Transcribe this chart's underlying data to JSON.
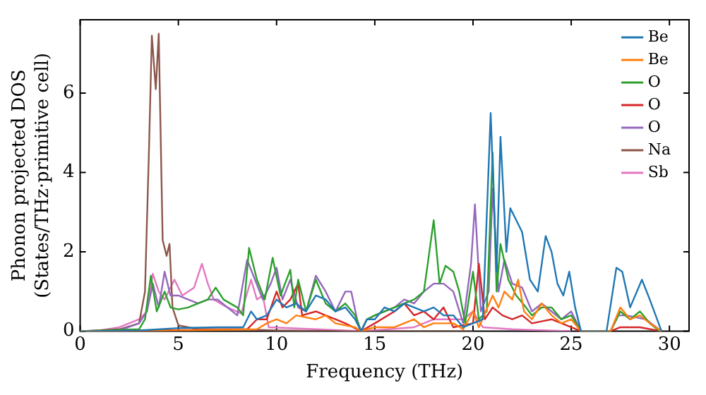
{
  "chart_data": {
    "type": "line",
    "xlabel": "Frequency (THz)",
    "ylabel": "Phonon projected DOS\n(States/THz·primitive cell)",
    "xlim": [
      0,
      31
    ],
    "ylim": [
      0,
      7.85
    ],
    "xticks": [
      0,
      5,
      10,
      15,
      20,
      25,
      30
    ],
    "yticks": [
      0,
      2,
      4,
      6
    ],
    "legend": "top right",
    "marker": "none",
    "line_style": "solid",
    "series": [
      {
        "name": "Be",
        "color": "#1f77b4",
        "x": [
          0,
          3,
          5,
          7,
          8.3,
          8.7,
          9,
          9.5,
          10,
          10.5,
          11,
          11.5,
          12,
          12.5,
          13,
          13.5,
          14,
          14.3,
          14.6,
          15,
          15.5,
          16,
          16.5,
          17,
          17.5,
          18,
          18.5,
          19,
          19.5,
          20,
          20.5,
          20.9,
          21.2,
          21.4,
          21.7,
          21.9,
          22.2,
          22.5,
          22.9,
          23.3,
          23.7,
          24,
          24.3,
          24.6,
          24.9,
          25.2,
          25.5,
          26.8,
          27.3,
          27.6,
          28,
          28.6,
          29,
          29.6
        ],
        "values": [
          0,
          0.02,
          0.08,
          0.1,
          0.1,
          0.5,
          0.3,
          0.4,
          0.8,
          0.6,
          0.7,
          0.5,
          0.9,
          0.8,
          0.5,
          0.6,
          0.3,
          0,
          0.3,
          0.3,
          0.6,
          0.5,
          0.7,
          0.6,
          0.5,
          0.6,
          0.4,
          0.4,
          0.1,
          0.2,
          0.3,
          5.5,
          1.5,
          4.9,
          2,
          3.1,
          2.8,
          2.5,
          1.3,
          1,
          2.4,
          2,
          1.2,
          0.9,
          1.5,
          0.6,
          0,
          0,
          1.6,
          1.5,
          0.6,
          1.3,
          0.8,
          0
        ]
      },
      {
        "name": "Be",
        "color": "#ff7f0e",
        "x": [
          0,
          5,
          9,
          9.5,
          10,
          10.5,
          11,
          12,
          12.5,
          13,
          14,
          14.3,
          15,
          16,
          17,
          17.5,
          18,
          19,
          19.5,
          20,
          20.3,
          21,
          21.3,
          21.6,
          22,
          22.3,
          22.6,
          23,
          23.5,
          24,
          24.5,
          25,
          25.5,
          27,
          27.5,
          28,
          28.5,
          29,
          29.6
        ],
        "values": [
          0,
          0.02,
          0.05,
          0.2,
          0.3,
          0.2,
          0.4,
          0.3,
          0.4,
          0.2,
          0.1,
          0,
          0.1,
          0.1,
          0.3,
          0.1,
          0.2,
          0.2,
          0.05,
          0.5,
          0.1,
          0.9,
          0.6,
          1,
          0.8,
          1.3,
          0.5,
          0.3,
          0.7,
          0.4,
          0.2,
          0.3,
          0,
          0,
          0.6,
          0.3,
          0.4,
          0.2,
          0
        ]
      },
      {
        "name": "O",
        "color": "#2ca02c",
        "x": [
          0,
          3,
          3.3,
          3.6,
          3.9,
          4.3,
          4.6,
          5,
          5.5,
          6,
          6.5,
          6.9,
          7.3,
          8,
          8.3,
          8.6,
          9,
          9.4,
          9.8,
          10.2,
          10.7,
          10.9,
          11.1,
          11.5,
          12,
          12.5,
          13,
          13.5,
          14,
          14.3,
          14.6,
          15,
          15.5,
          16,
          16.5,
          17,
          17.5,
          18,
          18.3,
          18.6,
          19,
          19.3,
          19.6,
          20,
          20.3,
          20.7,
          21,
          21.2,
          21.4,
          21.8,
          22.2,
          22.7,
          23,
          23.5,
          24,
          24.5,
          25,
          25.5,
          27,
          27.5,
          28,
          28.5,
          29,
          29.5
        ],
        "values": [
          0,
          0.05,
          0.3,
          1.4,
          0.5,
          1,
          0.6,
          0.55,
          0.6,
          0.7,
          0.8,
          1.1,
          0.8,
          0.6,
          0.4,
          2.1,
          1.3,
          0.8,
          1.85,
          0.9,
          1.55,
          0.6,
          1.3,
          0.5,
          1.3,
          0.7,
          0.5,
          0.7,
          0.4,
          0,
          0.3,
          0.4,
          0.5,
          0.6,
          0.7,
          0.8,
          1,
          2.8,
          1.2,
          1.65,
          1.5,
          1,
          0.2,
          1.5,
          0.3,
          0.5,
          4.5,
          1,
          2.2,
          1.3,
          0.9,
          0.6,
          0.4,
          0.6,
          0.6,
          0.3,
          0.4,
          0,
          0,
          0.5,
          0.3,
          0.5,
          0.2,
          0
        ]
      },
      {
        "name": "O",
        "color": "#d62728",
        "x": [
          0,
          5,
          8.5,
          9,
          9.5,
          10,
          10.3,
          10.7,
          11.1,
          11.3,
          12,
          12.5,
          13,
          13.5,
          14.3,
          15,
          16,
          16.5,
          17,
          17.5,
          18,
          18.5,
          19,
          20,
          20.3,
          20.6,
          21,
          21.5,
          22,
          22.5,
          23,
          24,
          25,
          25.5,
          27,
          27.5,
          28.5,
          29.6
        ],
        "values": [
          0,
          0.03,
          0.05,
          0.3,
          0.3,
          1,
          0.6,
          0.8,
          1.2,
          0.4,
          0.5,
          0.4,
          0.3,
          0.2,
          0,
          0.2,
          0.5,
          0.7,
          0.4,
          0.5,
          0.3,
          0.6,
          0.1,
          0.2,
          1.7,
          0.3,
          0.6,
          0.4,
          0.3,
          0.4,
          0.2,
          0.3,
          0.1,
          0,
          0,
          0.1,
          0.1,
          0
        ]
      },
      {
        "name": "O",
        "color": "#9467bd",
        "x": [
          0,
          2,
          3,
          3.4,
          3.7,
          4,
          4.3,
          4.6,
          5,
          5.5,
          6,
          6.5,
          7,
          7.5,
          8,
          8.5,
          8.9,
          9.3,
          9.7,
          10,
          10.3,
          10.7,
          11.1,
          11.5,
          12,
          12.5,
          13,
          13.5,
          13.8,
          14.1,
          14.3,
          14.6,
          15,
          16,
          16.5,
          17,
          17.5,
          18,
          18.5,
          19,
          19.5,
          19.9,
          20.1,
          20.4,
          20.8,
          21,
          21.3,
          21.6,
          22,
          22.5,
          23,
          23.5,
          24,
          24.5,
          25,
          25.5,
          27,
          27.4,
          27.8,
          28.3,
          28.8,
          29.6
        ],
        "values": [
          0,
          0.02,
          0.2,
          0.5,
          1.2,
          0.6,
          1.5,
          0.9,
          0.9,
          0.8,
          0.7,
          0.8,
          0.8,
          0.6,
          0.4,
          1.8,
          1.3,
          0.8,
          1.2,
          1.6,
          0.8,
          1.3,
          0.6,
          0.5,
          1.4,
          1,
          0.5,
          1,
          1,
          0.3,
          0,
          0.3,
          0.4,
          0.6,
          0.8,
          0.7,
          1,
          1.2,
          1.2,
          1,
          0.2,
          1.7,
          3.2,
          0.5,
          1,
          3.6,
          1,
          1.8,
          1.2,
          1.1,
          0.5,
          0.7,
          0.5,
          0.3,
          0.5,
          0,
          0,
          0.4,
          0.4,
          0.35,
          0.3,
          0
        ]
      },
      {
        "name": "Na",
        "color": "#8c564b",
        "x": [
          0,
          2,
          3,
          3.3,
          3.5,
          3.65,
          3.85,
          4,
          4.2,
          4.4,
          4.55,
          4.7,
          5,
          6,
          8,
          10,
          14,
          20
        ],
        "values": [
          0,
          0.05,
          0.2,
          1,
          4.5,
          7.45,
          6.1,
          7.5,
          2.3,
          1.9,
          2.2,
          0.6,
          0.15,
          0.05,
          0.05,
          0.02,
          0,
          0
        ]
      },
      {
        "name": "Sb",
        "color": "#e377c2",
        "x": [
          0,
          1,
          2,
          3,
          3.4,
          3.7,
          4,
          4.3,
          4.8,
          5.2,
          5.8,
          6.2,
          6.5,
          6.8,
          7.5,
          8.2,
          8.7,
          9,
          9.3,
          9.6,
          12,
          14.3,
          17,
          18,
          19.5,
          20,
          20.5,
          22,
          25
        ],
        "values": [
          0,
          0.02,
          0.1,
          0.3,
          0.5,
          1.45,
          1,
          0.8,
          1.3,
          0.9,
          1.1,
          1.7,
          1.2,
          0.8,
          0.6,
          0.45,
          1.3,
          0.8,
          0.9,
          0.1,
          0.05,
          0,
          0.1,
          0.3,
          0.3,
          0.5,
          0.1,
          0.05,
          0
        ]
      }
    ]
  }
}
